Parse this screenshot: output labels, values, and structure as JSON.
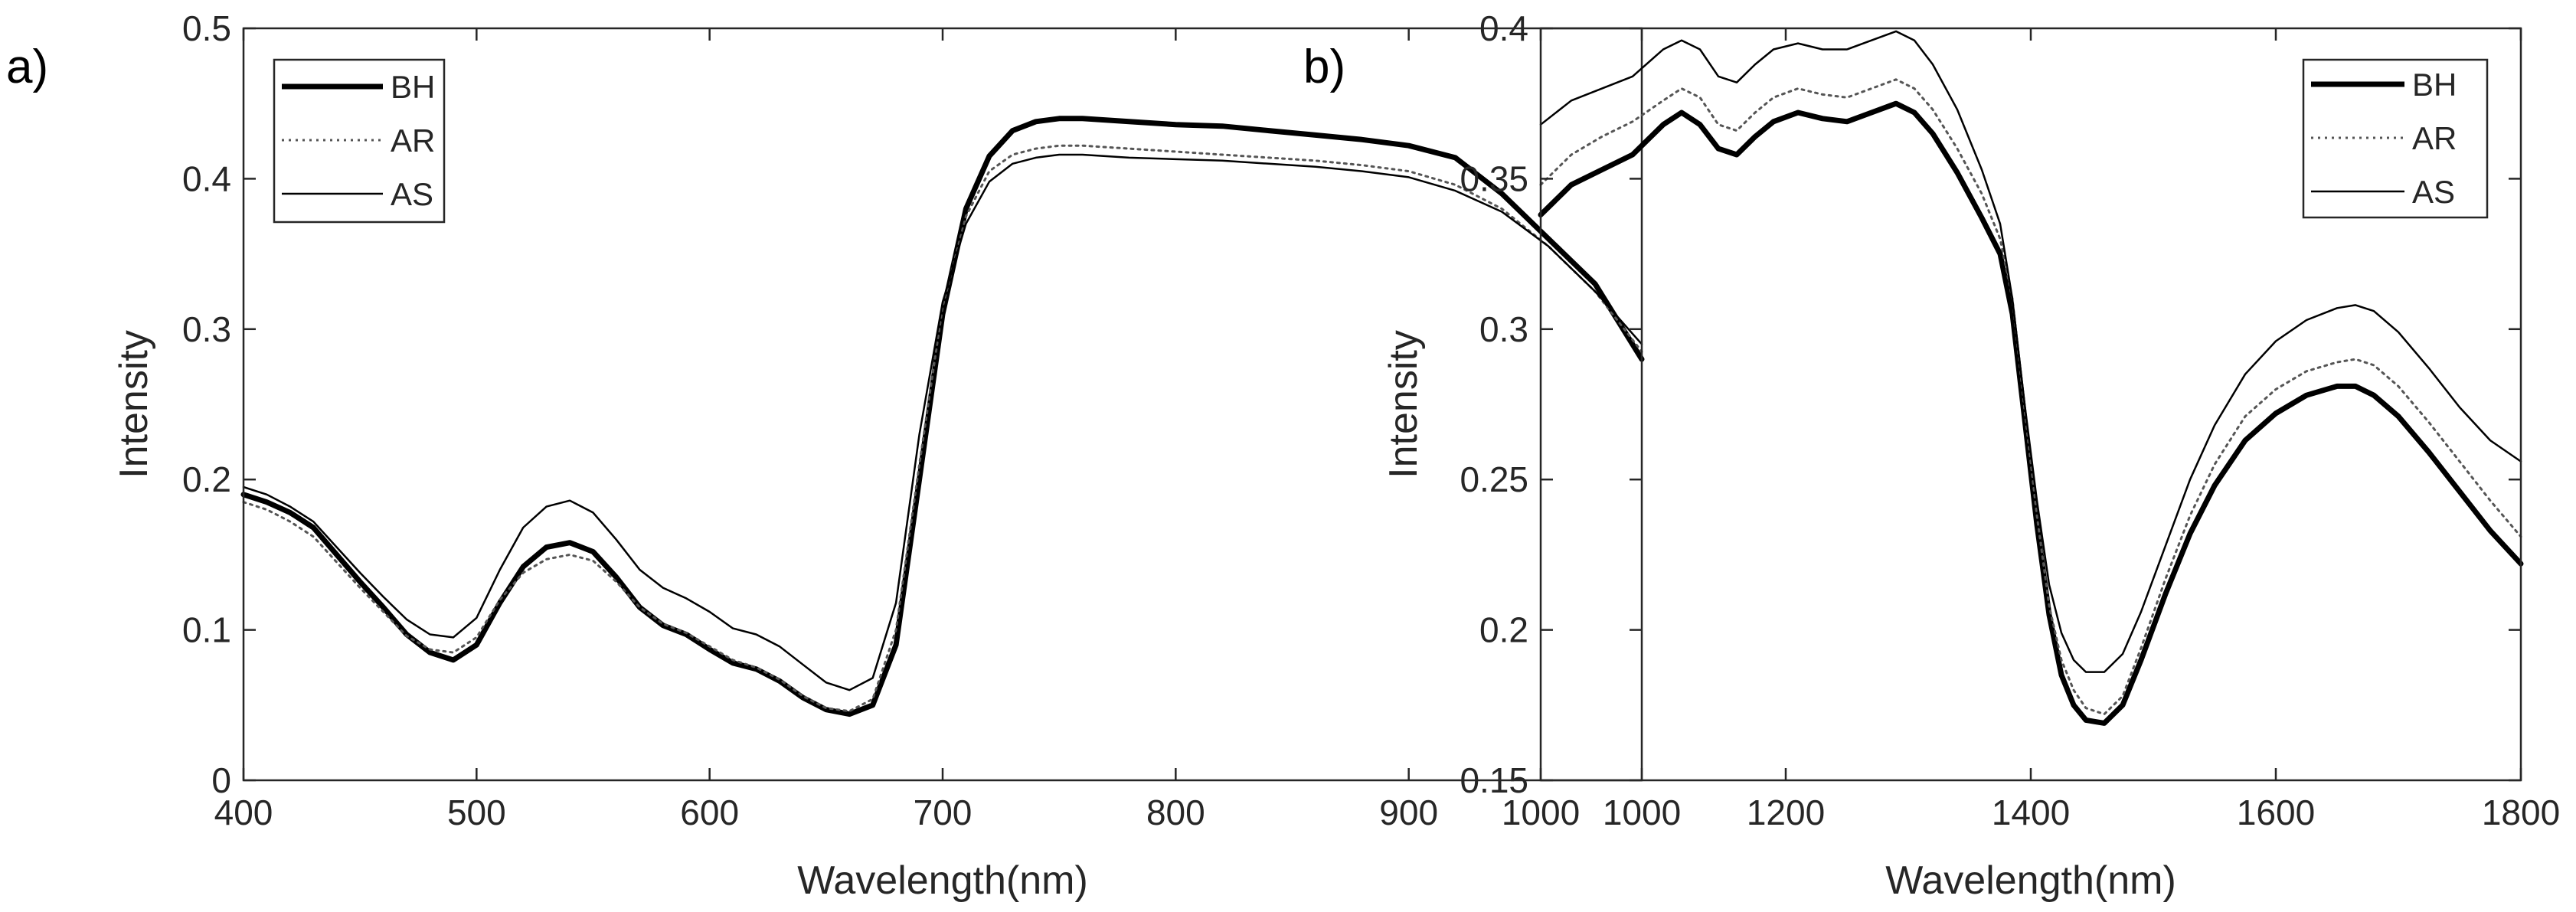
{
  "figure": {
    "panels": [
      {
        "label": "a)",
        "chart_data": {
          "type": "line",
          "title": "",
          "xlabel": "Wavelength(nm)",
          "ylabel": "Intensity",
          "xlim": [
            400,
            1000
          ],
          "ylim": [
            0,
            0.5
          ],
          "xticks": [
            400,
            500,
            600,
            700,
            800,
            900,
            1000
          ],
          "yticks": [
            0,
            0.1,
            0.2,
            0.3,
            0.4,
            0.5
          ],
          "xtick_labels": [
            "400",
            "500",
            "600",
            "700",
            "800",
            "900",
            "1000"
          ],
          "ytick_labels": [
            "0",
            "0.1",
            "0.2",
            "0.3",
            "0.4",
            "0.5"
          ],
          "grid": false,
          "legend_position": "top-left",
          "series": [
            {
              "name": "BH",
              "style": "thick",
              "x": [
                400,
                410,
                420,
                430,
                440,
                450,
                460,
                470,
                480,
                490,
                500,
                510,
                520,
                530,
                540,
                550,
                560,
                570,
                580,
                590,
                600,
                610,
                620,
                630,
                640,
                650,
                660,
                670,
                680,
                690,
                700,
                710,
                720,
                730,
                740,
                750,
                760,
                780,
                800,
                820,
                840,
                860,
                880,
                900,
                920,
                940,
                960,
                980,
                1000
              ],
              "y": [
                0.19,
                0.185,
                0.178,
                0.168,
                0.15,
                0.132,
                0.115,
                0.097,
                0.085,
                0.08,
                0.09,
                0.118,
                0.142,
                0.155,
                0.158,
                0.152,
                0.135,
                0.115,
                0.103,
                0.097,
                0.087,
                0.078,
                0.074,
                0.066,
                0.055,
                0.047,
                0.044,
                0.05,
                0.09,
                0.2,
                0.31,
                0.38,
                0.415,
                0.432,
                0.438,
                0.44,
                0.44,
                0.438,
                0.436,
                0.435,
                0.432,
                0.429,
                0.426,
                0.422,
                0.414,
                0.39,
                0.36,
                0.33,
                0.28
              ]
            },
            {
              "name": "AR",
              "style": "dotted",
              "x": [
                400,
                410,
                420,
                430,
                440,
                450,
                460,
                470,
                480,
                490,
                500,
                510,
                520,
                530,
                540,
                550,
                560,
                570,
                580,
                590,
                600,
                610,
                620,
                630,
                640,
                650,
                660,
                670,
                680,
                690,
                700,
                710,
                720,
                730,
                740,
                750,
                760,
                780,
                800,
                820,
                840,
                860,
                880,
                900,
                920,
                940,
                960,
                980,
                1000
              ],
              "y": [
                0.185,
                0.18,
                0.172,
                0.162,
                0.145,
                0.128,
                0.112,
                0.096,
                0.087,
                0.085,
                0.095,
                0.12,
                0.138,
                0.147,
                0.15,
                0.146,
                0.132,
                0.115,
                0.104,
                0.098,
                0.089,
                0.08,
                0.075,
                0.067,
                0.056,
                0.048,
                0.046,
                0.054,
                0.1,
                0.21,
                0.315,
                0.375,
                0.405,
                0.416,
                0.42,
                0.422,
                0.422,
                0.42,
                0.418,
                0.416,
                0.414,
                0.412,
                0.409,
                0.405,
                0.396,
                0.38,
                0.355,
                0.325,
                0.285
              ]
            },
            {
              "name": "AS",
              "style": "thin",
              "x": [
                400,
                410,
                420,
                430,
                440,
                450,
                460,
                470,
                480,
                490,
                500,
                510,
                520,
                530,
                540,
                550,
                560,
                570,
                580,
                590,
                600,
                610,
                620,
                630,
                640,
                650,
                660,
                670,
                680,
                690,
                700,
                710,
                720,
                730,
                740,
                750,
                760,
                780,
                800,
                820,
                840,
                860,
                880,
                900,
                920,
                940,
                960,
                980,
                1000
              ],
              "y": [
                0.195,
                0.19,
                0.182,
                0.172,
                0.155,
                0.138,
                0.122,
                0.107,
                0.097,
                0.095,
                0.108,
                0.14,
                0.168,
                0.182,
                0.186,
                0.178,
                0.16,
                0.14,
                0.128,
                0.121,
                0.112,
                0.101,
                0.097,
                0.089,
                0.077,
                0.065,
                0.06,
                0.068,
                0.118,
                0.23,
                0.318,
                0.37,
                0.398,
                0.41,
                0.414,
                0.416,
                0.416,
                0.414,
                0.413,
                0.412,
                0.41,
                0.408,
                0.405,
                0.401,
                0.392,
                0.378,
                0.355,
                0.325,
                0.29
              ]
            }
          ]
        }
      },
      {
        "label": "b)",
        "chart_data": {
          "type": "line",
          "title": "",
          "xlabel": "Wavelength(nm)",
          "ylabel": "Intensity",
          "xlim": [
            1000,
            1800
          ],
          "ylim": [
            0.15,
            0.4
          ],
          "xticks": [
            1000,
            1200,
            1400,
            1600,
            1800
          ],
          "yticks": [
            0.15,
            0.2,
            0.25,
            0.3,
            0.35,
            0.4
          ],
          "xtick_labels": [
            "1000",
            "1200",
            "1400",
            "1600",
            "1800"
          ],
          "ytick_labels": [
            "0.15",
            "0.2",
            "0.25",
            "0.3",
            "0.35",
            "0.4"
          ],
          "grid": false,
          "legend_position": "top-right",
          "series": [
            {
              "name": "BH",
              "style": "thick",
              "x": [
                1000,
                1025,
                1050,
                1075,
                1100,
                1115,
                1130,
                1145,
                1160,
                1175,
                1190,
                1210,
                1230,
                1250,
                1270,
                1290,
                1305,
                1320,
                1340,
                1360,
                1375,
                1385,
                1395,
                1405,
                1415,
                1425,
                1435,
                1445,
                1460,
                1475,
                1490,
                1510,
                1530,
                1550,
                1575,
                1600,
                1625,
                1650,
                1665,
                1680,
                1700,
                1725,
                1750,
                1775,
                1800
              ],
              "y": [
                0.338,
                0.348,
                0.353,
                0.358,
                0.368,
                0.372,
                0.368,
                0.36,
                0.358,
                0.364,
                0.369,
                0.372,
                0.37,
                0.369,
                0.372,
                0.375,
                0.372,
                0.365,
                0.352,
                0.337,
                0.325,
                0.305,
                0.27,
                0.235,
                0.205,
                0.185,
                0.175,
                0.17,
                0.169,
                0.175,
                0.19,
                0.212,
                0.232,
                0.248,
                0.263,
                0.272,
                0.278,
                0.281,
                0.281,
                0.278,
                0.271,
                0.259,
                0.246,
                0.233,
                0.222
              ]
            },
            {
              "name": "AR",
              "style": "dotted",
              "x": [
                1000,
                1025,
                1050,
                1075,
                1100,
                1115,
                1130,
                1145,
                1160,
                1175,
                1190,
                1210,
                1230,
                1250,
                1270,
                1290,
                1305,
                1320,
                1340,
                1360,
                1375,
                1385,
                1395,
                1405,
                1415,
                1425,
                1435,
                1445,
                1460,
                1475,
                1490,
                1510,
                1530,
                1550,
                1575,
                1600,
                1625,
                1650,
                1665,
                1680,
                1700,
                1725,
                1750,
                1775,
                1800
              ],
              "y": [
                0.348,
                0.358,
                0.364,
                0.369,
                0.376,
                0.38,
                0.377,
                0.368,
                0.366,
                0.372,
                0.377,
                0.38,
                0.378,
                0.377,
                0.38,
                0.383,
                0.38,
                0.373,
                0.36,
                0.345,
                0.33,
                0.31,
                0.273,
                0.238,
                0.208,
                0.19,
                0.18,
                0.174,
                0.172,
                0.178,
                0.194,
                0.217,
                0.238,
                0.255,
                0.271,
                0.28,
                0.286,
                0.289,
                0.29,
                0.288,
                0.281,
                0.269,
                0.256,
                0.243,
                0.231
              ]
            },
            {
              "name": "AS",
              "style": "thin",
              "x": [
                1000,
                1025,
                1050,
                1075,
                1100,
                1115,
                1130,
                1145,
                1160,
                1175,
                1190,
                1210,
                1230,
                1250,
                1270,
                1290,
                1305,
                1320,
                1340,
                1360,
                1375,
                1385,
                1395,
                1405,
                1415,
                1425,
                1435,
                1445,
                1460,
                1475,
                1490,
                1510,
                1530,
                1550,
                1575,
                1600,
                1625,
                1650,
                1665,
                1680,
                1700,
                1725,
                1750,
                1775,
                1800
              ],
              "y": [
                0.368,
                0.376,
                0.38,
                0.384,
                0.393,
                0.396,
                0.393,
                0.384,
                0.382,
                0.388,
                0.393,
                0.395,
                0.393,
                0.393,
                0.396,
                0.399,
                0.396,
                0.388,
                0.373,
                0.353,
                0.335,
                0.31,
                0.275,
                0.243,
                0.215,
                0.199,
                0.19,
                0.186,
                0.186,
                0.192,
                0.206,
                0.228,
                0.25,
                0.268,
                0.285,
                0.296,
                0.303,
                0.307,
                0.308,
                0.306,
                0.299,
                0.287,
                0.274,
                0.263,
                0.256
              ]
            }
          ]
        }
      }
    ]
  }
}
